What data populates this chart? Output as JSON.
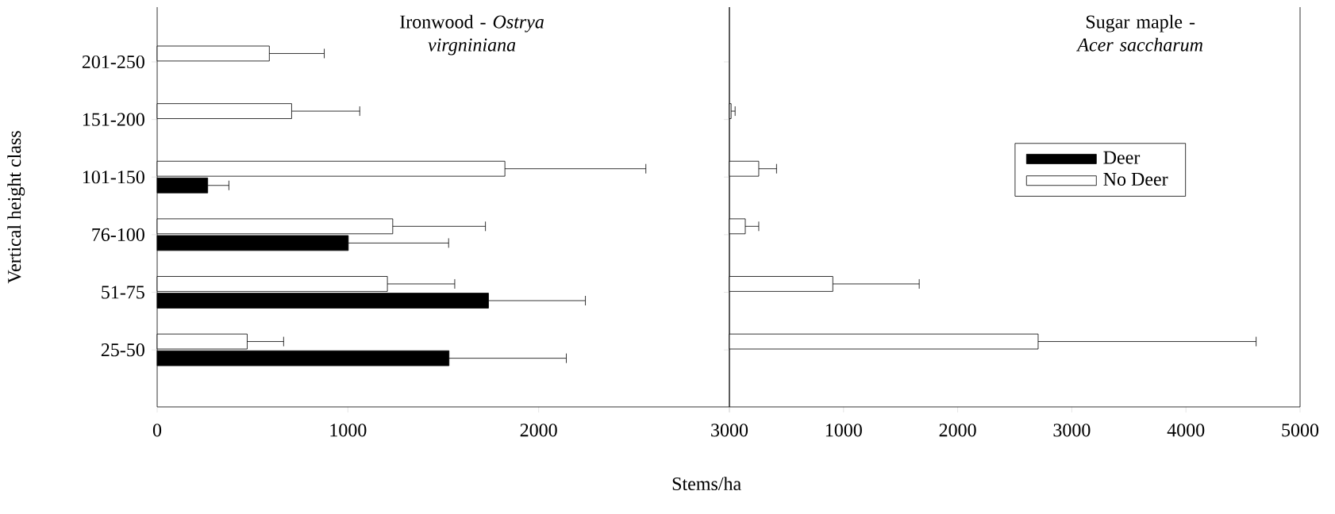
{
  "chart_data": [
    {
      "type": "bar",
      "orientation": "horizontal",
      "title": "Ironwood - *Ostrya virgniniana*",
      "ylabel": "Vertical height class",
      "xlabel": "Stems/ha",
      "categories": [
        "201-250",
        "151-200",
        "101-150",
        "76-100",
        "51-75",
        "25-50"
      ],
      "series": [
        {
          "color": "#ffffff",
          "values": [
            588,
            705,
            1823,
            1235,
            1207,
            472
          ],
          "errors": [
            [
              588,
              876
            ],
            [
              705,
              1062
            ],
            [
              1823,
              2562
            ],
            [
              1235,
              1721
            ],
            [
              1207,
              1560
            ],
            [
              472,
              663
            ]
          ]
        },
        {
          "color": "#000000",
          "values": [
            null,
            null,
            265,
            1002,
            1737,
            1530
          ],
          "errors": [
            null,
            null,
            [
              265,
              376
            ],
            [
              1002,
              1528
            ],
            [
              1737,
              2245
            ],
            [
              1530,
              2145
            ]
          ]
        }
      ],
      "xlim": [
        0,
        3000
      ],
      "xticks": [
        0,
        1000,
        2000,
        3000
      ]
    },
    {
      "type": "bar",
      "orientation": "horizontal",
      "title": "Sugar maple - *Acer saccharum*",
      "tick_labels": "x",
      "legend": "right",
      "categories": [
        null,
        null,
        null,
        null,
        null,
        null
      ],
      "series": [
        {
          "name": "No Deer",
          "color": "#ffffff",
          "values": [
            null,
            15,
            257,
            139,
            906,
            2705
          ],
          "errors": [
            null,
            [
              15,
              50
            ],
            [
              257,
              413
            ],
            [
              139,
              257
            ],
            [
              906,
              1663
            ],
            [
              2705,
              4615
            ]
          ]
        },
        {
          "name": "Deer",
          "color": "#000000",
          "values": [
            null,
            null,
            null,
            null,
            null,
            null
          ]
        }
      ],
      "xlim": [
        0,
        5000
      ],
      "xticks": [
        {
          "value": 0,
          "label": null
        },
        1000,
        2000,
        3000,
        4000,
        5000
      ]
    }
  ]
}
